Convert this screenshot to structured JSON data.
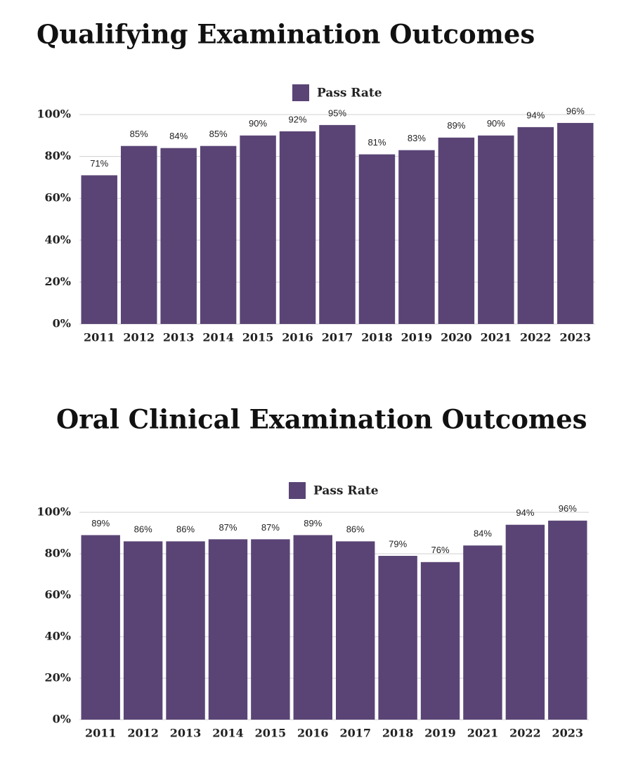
{
  "chart_data": [
    {
      "type": "bar",
      "title": "Qualifying Examination Outcomes",
      "categories": [
        "2011",
        "2012",
        "2013",
        "2014",
        "2015",
        "2016",
        "2017",
        "2018",
        "2019",
        "2020",
        "2021",
        "2022",
        "2023"
      ],
      "series": [
        {
          "name": "Pass Rate",
          "color": "#5a4475",
          "values": [
            71,
            85,
            84,
            85,
            90,
            92,
            95,
            81,
            83,
            89,
            90,
            94,
            96
          ],
          "value_labels": [
            "71%",
            "85%",
            "84%",
            "85%",
            "90%",
            "92%",
            "95%",
            "81%",
            "83%",
            "89%",
            "90%",
            "94%",
            "96%"
          ]
        }
      ],
      "ylim": [
        0,
        100
      ],
      "yticks": [
        {
          "value": 0,
          "label": "0%"
        },
        {
          "value": 20,
          "label": "20%"
        },
        {
          "value": 40,
          "label": "40%"
        },
        {
          "value": 60,
          "label": "60%"
        },
        {
          "value": 80,
          "label": "80%"
        },
        {
          "value": 100,
          "label": "100%"
        }
      ],
      "grid": true,
      "legend": "top"
    },
    {
      "type": "bar",
      "title": "Oral Clinical Examination Outcomes",
      "categories": [
        "2011",
        "2012",
        "2013",
        "2014",
        "2015",
        "2016",
        "2017",
        "2018",
        "2019",
        "2021",
        "2022",
        "2023"
      ],
      "series": [
        {
          "name": "Pass Rate",
          "color": "#5a4475",
          "values": [
            89,
            86,
            86,
            87,
            87,
            89,
            86,
            79,
            76,
            84,
            94,
            96
          ],
          "value_labels": [
            "89%",
            "86%",
            "86%",
            "87%",
            "87%",
            "89%",
            "86%",
            "79%",
            "76%",
            "84%",
            "94%",
            "96%"
          ]
        }
      ],
      "ylim": [
        0,
        100
      ],
      "yticks": [
        {
          "value": 0,
          "label": "0%"
        },
        {
          "value": 20,
          "label": "20%"
        },
        {
          "value": 40,
          "label": "40%"
        },
        {
          "value": 60,
          "label": "60%"
        },
        {
          "value": 80,
          "label": "80%"
        },
        {
          "value": 100,
          "label": "100%"
        }
      ],
      "grid": true,
      "legend": "top"
    }
  ]
}
